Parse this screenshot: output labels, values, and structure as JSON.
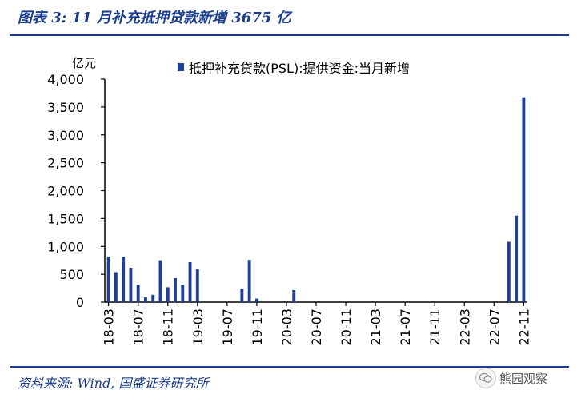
{
  "figure": {
    "title": "图表 3:  11 月补充抵押贷款新增 3675 亿",
    "source": "资料来源:  Wind,  国盛证券研究所"
  },
  "watermark": {
    "icon": "wechat-icon",
    "text": "熊园观察"
  },
  "colors": {
    "bar": "#1f3f99",
    "title": "#1a3d8f",
    "axis": "#000000"
  },
  "chart_data": {
    "type": "bar",
    "title": "",
    "ylabel": "亿元",
    "xlabel": "",
    "ylim": [
      0,
      4000
    ],
    "yticks": [
      0,
      500,
      1000,
      1500,
      2000,
      2500,
      3000,
      3500,
      4000
    ],
    "ytick_labels": [
      "0",
      "500",
      "1,000",
      "1,500",
      "2,000",
      "2,500",
      "3,000",
      "3,500",
      "4,000"
    ],
    "xtick_labels": [
      "18-03",
      "18-07",
      "18-11",
      "19-03",
      "19-07",
      "19-11",
      "20-03",
      "20-07",
      "20-11",
      "21-03",
      "21-07",
      "21-11",
      "22-03",
      "22-07",
      "22-11"
    ],
    "grid": false,
    "legend_position": "top",
    "series": [
      {
        "name": "抵押补充贷款(PSL):提供资金:当月新增",
        "categories": [
          "18-03",
          "18-04",
          "18-05",
          "18-06",
          "18-07",
          "18-08",
          "18-09",
          "18-10",
          "18-11",
          "18-12",
          "19-01",
          "19-02",
          "19-03",
          "19-04",
          "19-05",
          "19-06",
          "19-07",
          "19-08",
          "19-09",
          "19-10",
          "19-11",
          "19-12",
          "20-01",
          "20-02",
          "20-03",
          "20-04",
          "20-05",
          "20-06",
          "20-07",
          "20-08",
          "20-09",
          "20-10",
          "20-11",
          "20-12",
          "21-01",
          "21-02",
          "21-03",
          "21-04",
          "21-05",
          "21-06",
          "21-07",
          "21-08",
          "21-09",
          "21-10",
          "21-11",
          "21-12",
          "22-01",
          "22-02",
          "22-03",
          "22-04",
          "22-05",
          "22-06",
          "22-07",
          "22-08",
          "22-09",
          "22-10",
          "22-11"
        ],
        "values": [
          818,
          537,
          817,
          617,
          310,
          85,
          132,
          751,
          267,
          431,
          310,
          717,
          592,
          0,
          0,
          0,
          0,
          0,
          243,
          758,
          63,
          0,
          0,
          0,
          0,
          216,
          0,
          0,
          0,
          0,
          0,
          0,
          0,
          0,
          0,
          0,
          0,
          0,
          0,
          0,
          0,
          0,
          0,
          0,
          0,
          0,
          0,
          0,
          0,
          0,
          0,
          0,
          0,
          0,
          1082,
          1552,
          3675
        ]
      }
    ]
  }
}
